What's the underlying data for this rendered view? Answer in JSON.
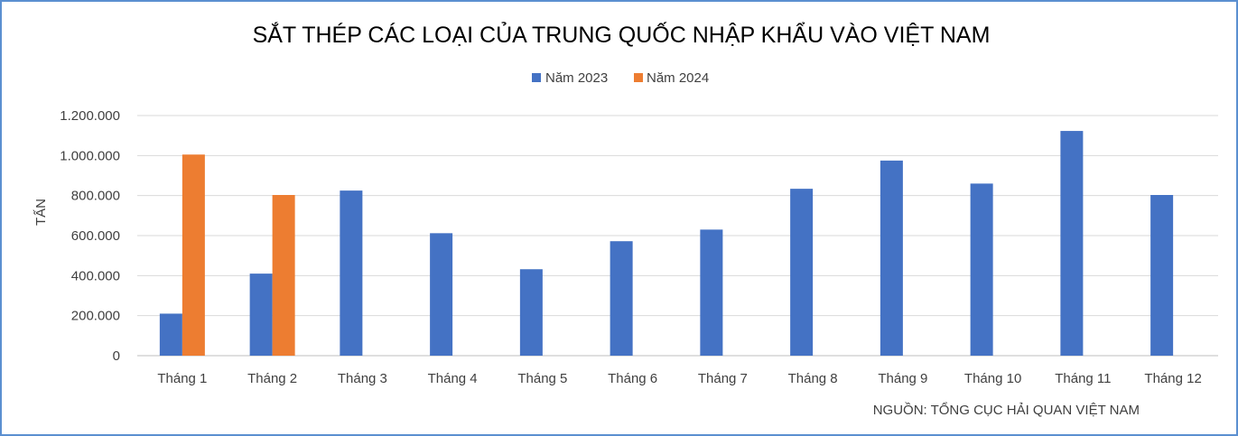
{
  "chart_data": {
    "type": "bar",
    "title": "SẮT THÉP CÁC LOẠI CỦA TRUNG QUỐC NHẬP KHẨU VÀO VIỆT NAM",
    "ylabel": "TẤN",
    "xlabel": "",
    "source": "NGUỒN: TỔNG CỤC HẢI QUAN VIỆT NAM",
    "categories": [
      "Tháng 1",
      "Tháng 2",
      "Tháng 3",
      "Tháng 4",
      "Tháng 5",
      "Tháng 6",
      "Tháng 7",
      "Tháng 8",
      "Tháng 9",
      "Tháng 10",
      "Tháng 11",
      "Tháng 12"
    ],
    "series": [
      {
        "name": "Năm 2023",
        "color": "#4472c4",
        "values": [
          210000,
          410000,
          825000,
          612000,
          432000,
          572000,
          630000,
          834000,
          975000,
          860000,
          1123000,
          803000
        ]
      },
      {
        "name": "Năm 2024",
        "color": "#ed7d31",
        "values": [
          1005000,
          803000,
          null,
          null,
          null,
          null,
          null,
          null,
          null,
          null,
          null,
          null
        ]
      }
    ],
    "ylim": [
      0,
      1200000
    ],
    "yticks": [
      0,
      200000,
      400000,
      600000,
      800000,
      1000000,
      1200000
    ],
    "ytick_labels": [
      "0",
      "200.000",
      "400.000",
      "600.000",
      "800.000",
      "1.000.000",
      "1.200.000"
    ],
    "grid": true,
    "legend_position": "top"
  }
}
